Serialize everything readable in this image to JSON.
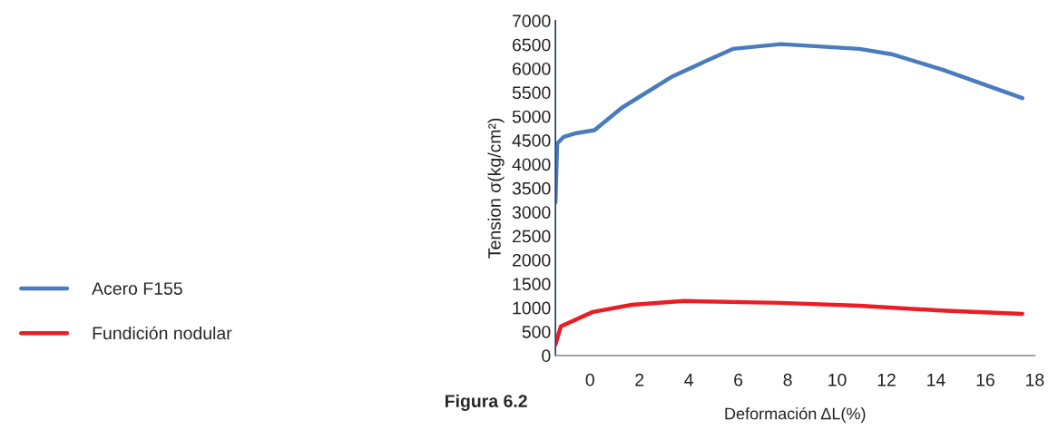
{
  "chart_data": {
    "type": "line",
    "xlabel": "Deformación ΔL(%)",
    "ylabel": "Tension σ(kg/cm²)",
    "annotations": [
      "Figura 6.2"
    ],
    "xlim": [
      -1.4,
      18
    ],
    "xticks": [
      0,
      2,
      4,
      6,
      8,
      10,
      12,
      14,
      16,
      18
    ],
    "ylim": [
      0,
      7000
    ],
    "yticks": [
      0,
      500,
      1000,
      1500,
      2000,
      2500,
      3000,
      3500,
      4000,
      4500,
      5000,
      5500,
      6000,
      6500,
      7000
    ],
    "grid": false,
    "legend": "left",
    "marker": "none",
    "line_style": "solid",
    "series": [
      {
        "name": "Acero F155",
        "color": "#4a7bbd",
        "x": [
          -1.4,
          -1.33,
          -1.07,
          -0.55,
          0.18,
          1.29,
          3.28,
          4.71,
          5.78,
          7.73,
          10.9,
          12.2,
          14.3,
          17.5
        ],
        "values": [
          3200,
          4430,
          4570,
          4650,
          4710,
          5180,
          5820,
          6160,
          6410,
          6510,
          6410,
          6300,
          5970,
          5380
        ]
      },
      {
        "name": "Fundición nodular",
        "color": "#ec1c24",
        "x": [
          -1.4,
          -1.18,
          0.11,
          1.69,
          3.79,
          7.73,
          10.9,
          14.2,
          17.5
        ],
        "values": [
          230,
          610,
          910,
          1060,
          1140,
          1100,
          1040,
          940,
          870
        ]
      }
    ]
  }
}
